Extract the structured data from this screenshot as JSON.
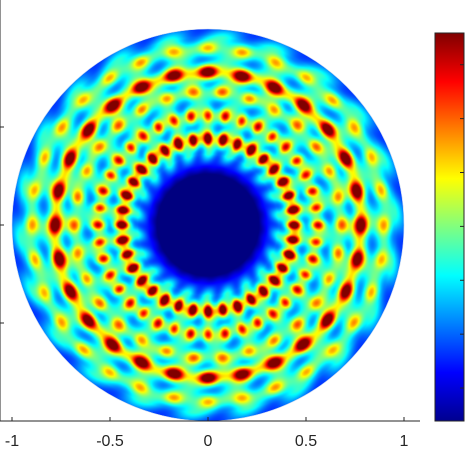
{
  "chart_data": {
    "type": "heatmap",
    "title": "",
    "xlabel": "",
    "ylabel": "",
    "xlim": [
      -1,
      1
    ],
    "ylim": [
      -1,
      1
    ],
    "x_ticks": [
      {
        "value": -1,
        "label": "-1"
      },
      {
        "value": -0.5,
        "label": "-0.5"
      },
      {
        "value": 0,
        "label": "0"
      },
      {
        "value": 0.5,
        "label": "0.5"
      },
      {
        "value": 1,
        "label": "1"
      }
    ],
    "domain_shape": "disk",
    "domain_radius": 1,
    "colormap": "jet",
    "colorbar": true,
    "pattern": {
      "central_low_region_radius": 0.3,
      "rings": [
        {
          "radius": 0.44,
          "lobes": 36,
          "level": 0.95
        },
        {
          "radius": 0.56,
          "lobes": 40,
          "level": 0.6
        },
        {
          "radius": 0.68,
          "lobes": 30,
          "level": 0.45
        },
        {
          "radius": 0.78,
          "lobes": 28,
          "level": 0.9
        },
        {
          "radius": 0.9,
          "lobes": 32,
          "level": 0.4
        }
      ]
    }
  }
}
